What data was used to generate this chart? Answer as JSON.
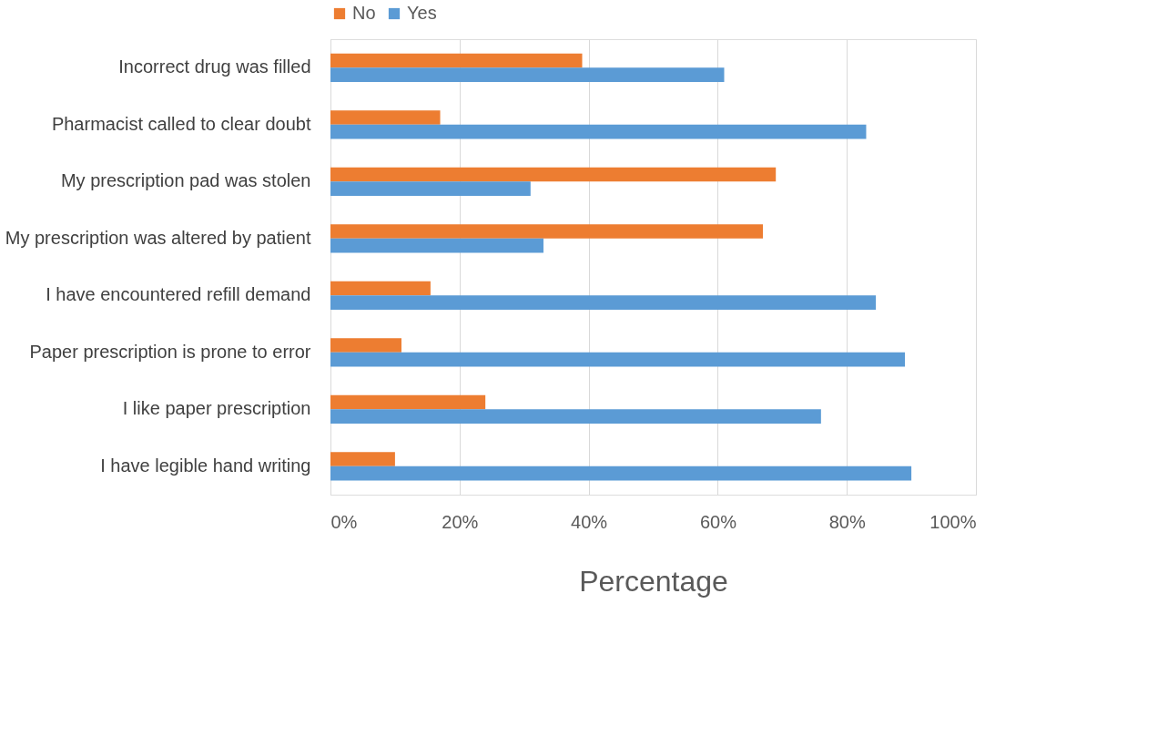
{
  "chart_data": {
    "type": "bar",
    "orientation": "horizontal",
    "xlabel": "Percentage",
    "categories": [
      "Incorrect drug was filled",
      "Pharmacist called to clear doubt",
      "My prescription pad was stolen",
      "My prescription was altered by patient",
      "I have encountered refill demand ",
      "Paper prescription is prone to error",
      "I like paper prescription",
      "I have legible hand writing "
    ],
    "series": [
      {
        "name": "No",
        "color": "#ed7d31",
        "values": [
          39,
          17,
          69,
          67,
          15.5,
          11,
          24,
          10
        ]
      },
      {
        "name": "Yes",
        "color": "#5b9bd5",
        "values": [
          61,
          83,
          31,
          33,
          84.5,
          89,
          76,
          90
        ]
      }
    ],
    "xlim": [
      0,
      100
    ],
    "xticks": [
      {
        "value": 0,
        "label": "0%"
      },
      {
        "value": 20,
        "label": "20%"
      },
      {
        "value": 40,
        "label": "40%"
      },
      {
        "value": 60,
        "label": "60%"
      },
      {
        "value": 80,
        "label": "80%"
      },
      {
        "value": 100,
        "label": "100%"
      }
    ],
    "grid": "x",
    "legend": "top"
  }
}
